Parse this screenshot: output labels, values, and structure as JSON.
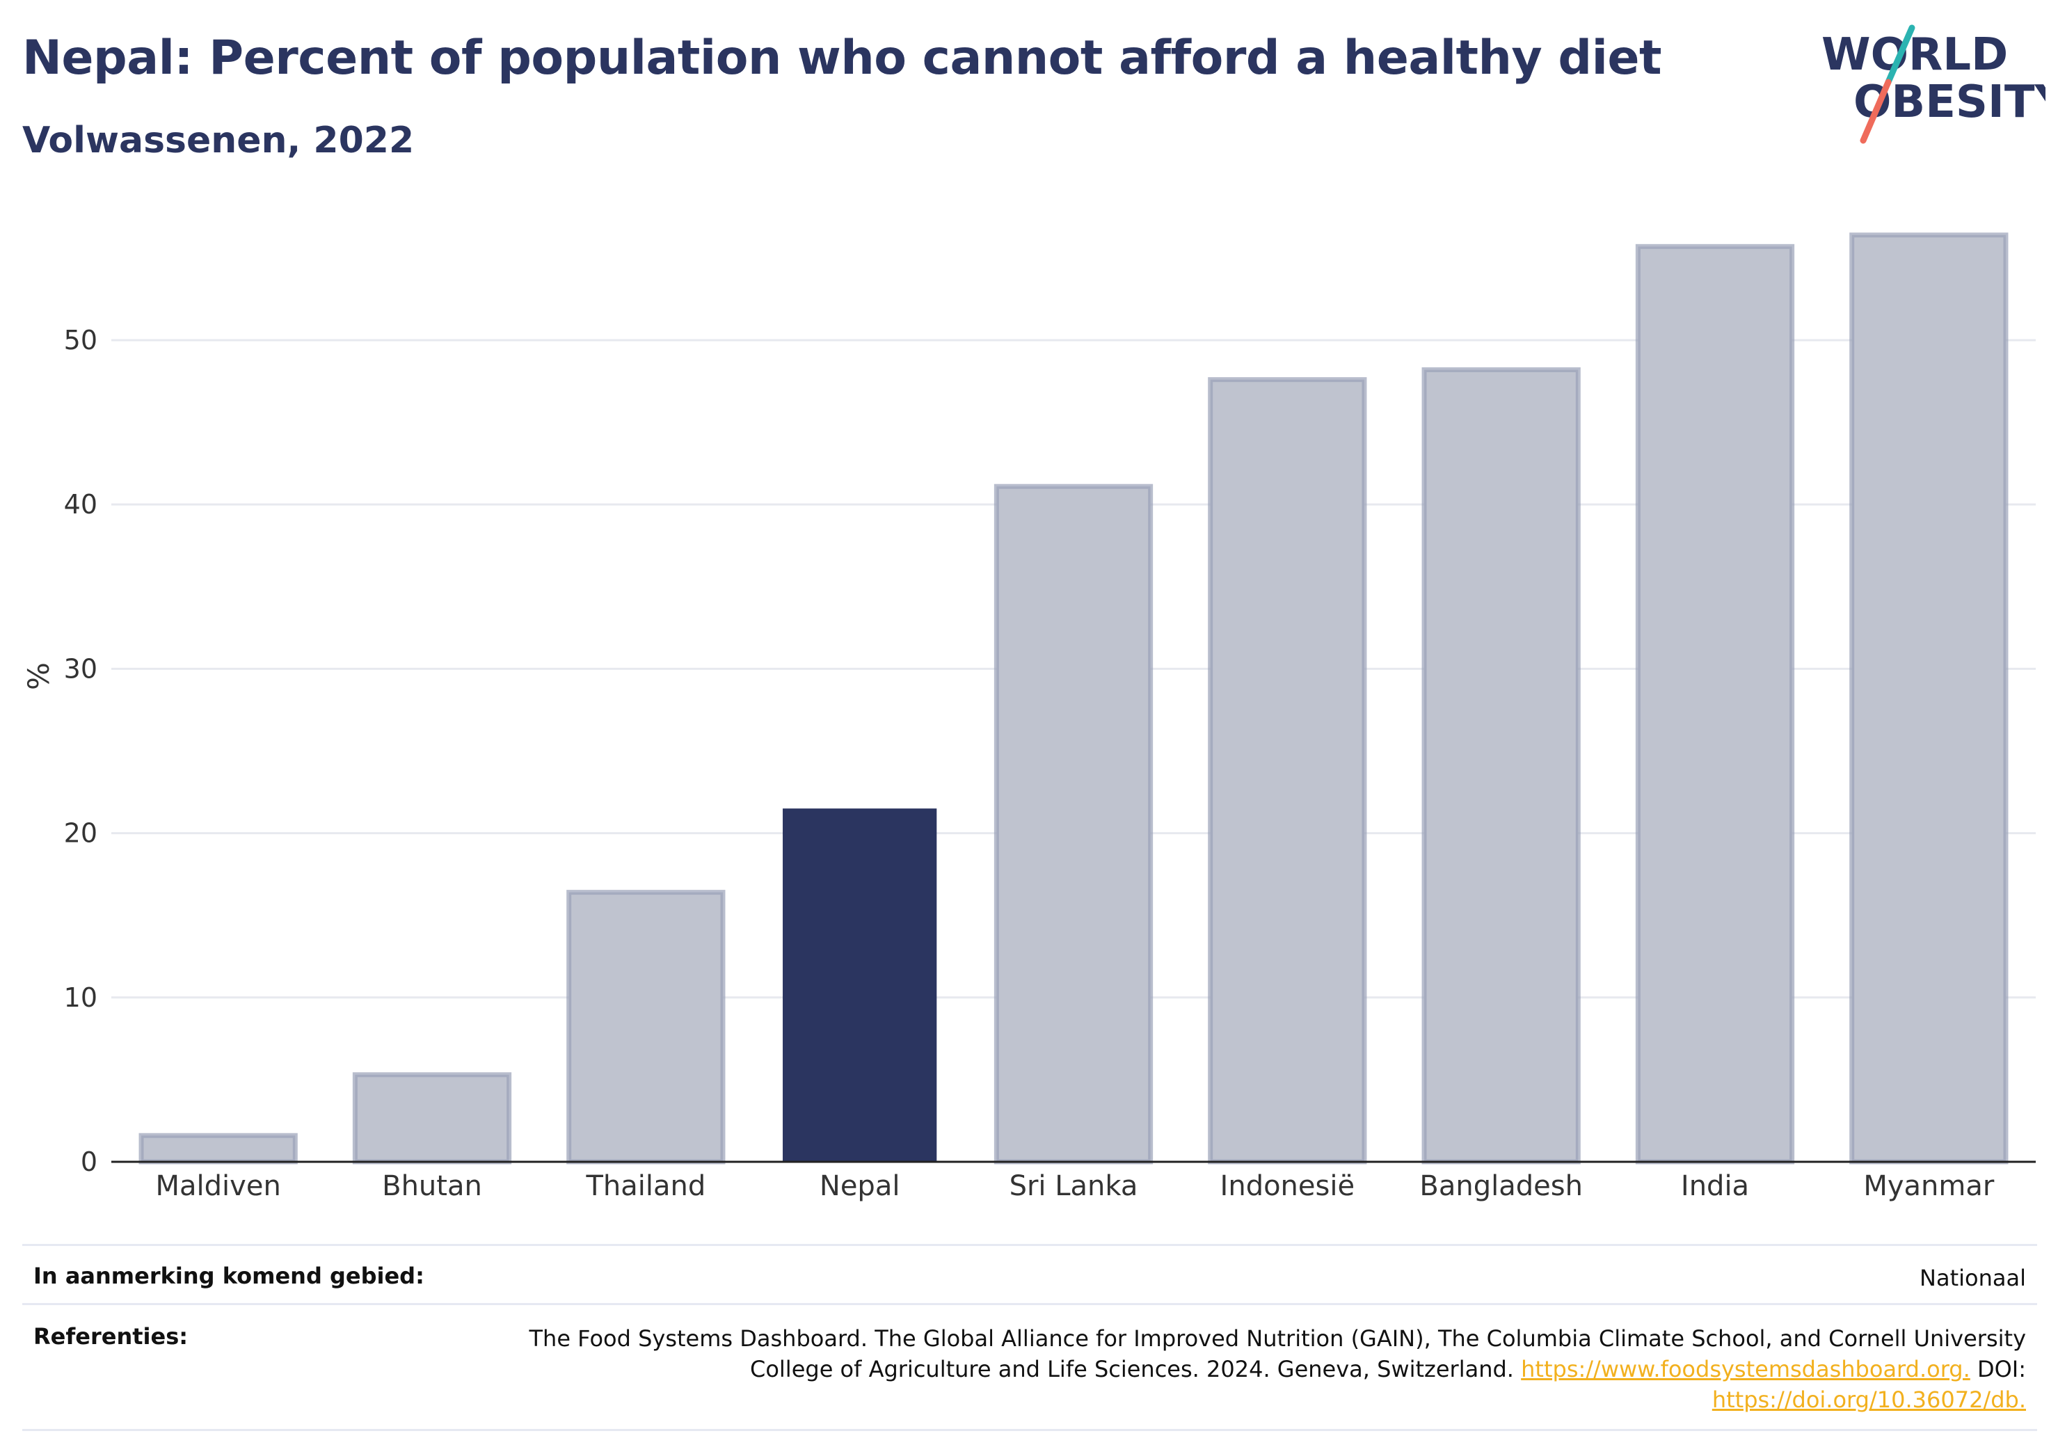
{
  "header": {
    "title": "Nepal: Percent of population who cannot afford a healthy diet",
    "subtitle": "Volwassenen, 2022"
  },
  "logo": {
    "line1": "WORLD",
    "line2": "OBESITY",
    "colors": {
      "text": "#2b3560",
      "slash_top": "#2bb3b1",
      "slash_bottom": "#ef6b5b"
    }
  },
  "chart_data": {
    "type": "bar",
    "categories": [
      "Maldiven",
      "Bhutan",
      "Thailand",
      "Nepal",
      "Sri Lanka",
      "Indonesië",
      "Bangladesh",
      "India",
      "Myanmar"
    ],
    "values": [
      1.6,
      5.3,
      16.4,
      21.5,
      41.1,
      47.6,
      48.2,
      55.7,
      56.4
    ],
    "highlight": "Nepal",
    "ylabel": "%",
    "xlabel": "",
    "ylim": [
      0,
      58
    ],
    "yticks": [
      0,
      10,
      20,
      30,
      40,
      50
    ],
    "grid": true,
    "colors": {
      "bar": "#bfc3cf",
      "bar_border": "#9aa1b8",
      "highlight": "#2b3560",
      "grid": "#e7e9ef",
      "axis": "#222222"
    }
  },
  "info": {
    "scope_label": "In aanmerking komend gebied:",
    "scope_value": "Nationaal",
    "refs_label": "Referenties:",
    "refs_text": "The Food Systems Dashboard. The Global Alliance for Improved Nutrition (GAIN), The Columbia Climate School, and Cornell University College of Agriculture and Life Sciences. 2024. Geneva, Switzerland. ",
    "refs_link1": "https://www.foodsystemsdashboard.org.",
    "refs_doi": " DOI: ",
    "refs_link2": "https://doi.org/10.36072/db."
  }
}
